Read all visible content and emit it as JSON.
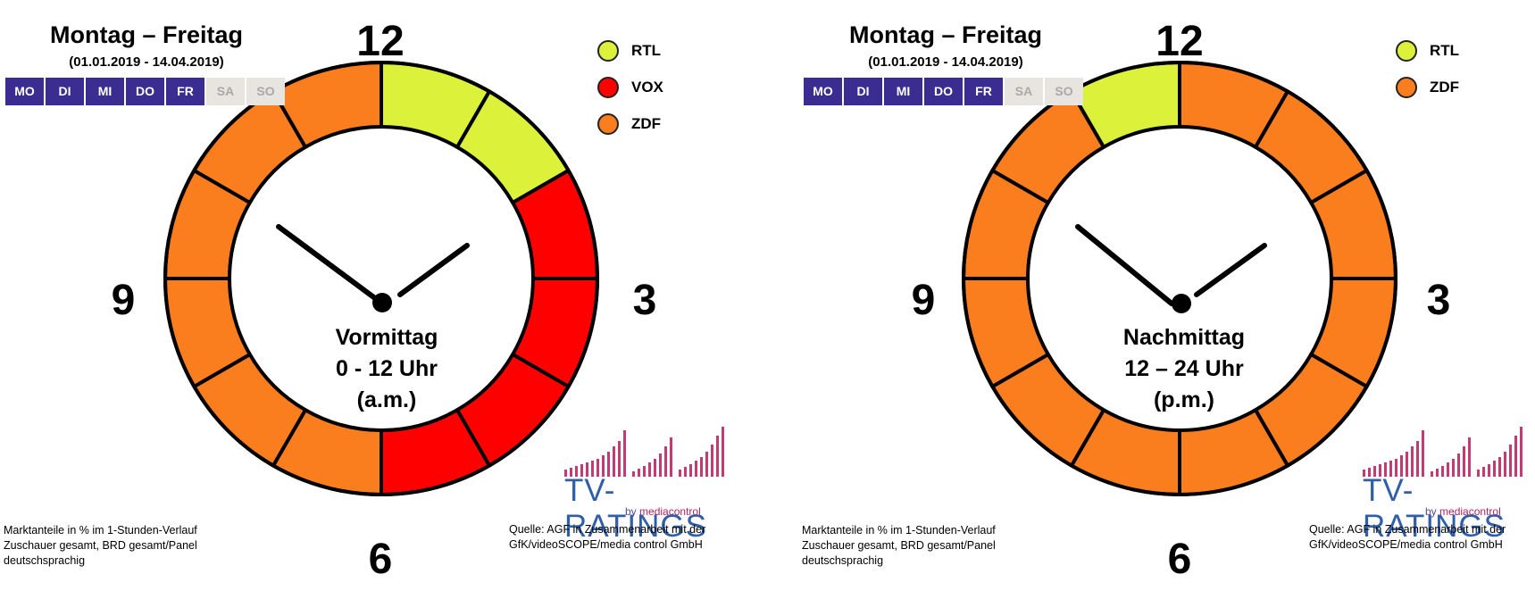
{
  "panels": [
    {
      "title": "Montag – Freitag",
      "date_range": "(01.01.2019 - 14.04.2019)",
      "days": [
        {
          "label": "MO",
          "active": true
        },
        {
          "label": "DI",
          "active": true
        },
        {
          "label": "MI",
          "active": true
        },
        {
          "label": "DO",
          "active": true
        },
        {
          "label": "FR",
          "active": true
        },
        {
          "label": "SA",
          "active": false
        },
        {
          "label": "SO",
          "active": false
        }
      ],
      "legend": [
        {
          "name": "RTL",
          "color": "#dcf23a"
        },
        {
          "name": "VOX",
          "color": "#ff0000"
        },
        {
          "name": "ZDF",
          "color": "#fa7d1e"
        }
      ],
      "clock_numbers": {
        "top": "12",
        "right": "3",
        "bottom": "6",
        "left": "9"
      },
      "center_lines": [
        "Vormittag",
        "0 - 12 Uhr",
        "(a.m.)"
      ],
      "footnote_left": [
        "Marktanteile in % im 1-Stunden-Verlauf",
        "Zuschauer gesamt, BRD gesamt/Panel",
        "deutschsprachig"
      ],
      "source": [
        "Quelle: AGF in Zusammenarbeit  mit der",
        "GfK/videoSCOPE/media  control GmbH"
      ],
      "logo": {
        "name": "TV-RATINGS",
        "by": "by",
        "brand": "mediacontrol"
      }
    },
    {
      "title": "Montag – Freitag",
      "date_range": "(01.01.2019 - 14.04.2019)",
      "days": [
        {
          "label": "MO",
          "active": true
        },
        {
          "label": "DI",
          "active": true
        },
        {
          "label": "MI",
          "active": true
        },
        {
          "label": "DO",
          "active": true
        },
        {
          "label": "FR",
          "active": true
        },
        {
          "label": "SA",
          "active": false
        },
        {
          "label": "SO",
          "active": false
        }
      ],
      "legend": [
        {
          "name": "RTL",
          "color": "#dcf23a"
        },
        {
          "name": "ZDF",
          "color": "#fa7d1e"
        }
      ],
      "clock_numbers": {
        "top": "12",
        "right": "3",
        "bottom": "6",
        "left": "9"
      },
      "center_lines": [
        "Nachmittag",
        "12 – 24 Uhr",
        "(p.m.)"
      ],
      "footnote_left": [
        "Marktanteile in % im 1-Stunden-Verlauf",
        "Zuschauer gesamt, BRD gesamt/Panel",
        "deutschsprachig"
      ],
      "source": [
        "Quelle: AGF in Zusammenarbeit  mit der",
        "GfK/videoSCOPE/media  control GmbH"
      ],
      "logo": {
        "name": "TV-RATINGS",
        "by": "by",
        "brand": "mediacontrol"
      }
    }
  ],
  "chart_data": [
    {
      "type": "pie",
      "hours": [
        "0",
        "1",
        "2",
        "3",
        "4",
        "5",
        "6",
        "7",
        "8",
        "9",
        "10",
        "11"
      ],
      "leader_by_hour": [
        "RTL",
        "RTL",
        "VOX",
        "VOX",
        "VOX",
        "VOX",
        "ZDF",
        "ZDF",
        "ZDF",
        "ZDF",
        "ZDF",
        "ZDF"
      ]
    },
    {
      "type": "pie",
      "hours": [
        "12",
        "13",
        "14",
        "15",
        "16",
        "17",
        "18",
        "19",
        "20",
        "21",
        "22",
        "23"
      ],
      "leader_by_hour": [
        "ZDF",
        "ZDF",
        "ZDF",
        "ZDF",
        "ZDF",
        "ZDF",
        "ZDF",
        "ZDF",
        "ZDF",
        "ZDF",
        "ZDF",
        "RTL"
      ]
    }
  ]
}
